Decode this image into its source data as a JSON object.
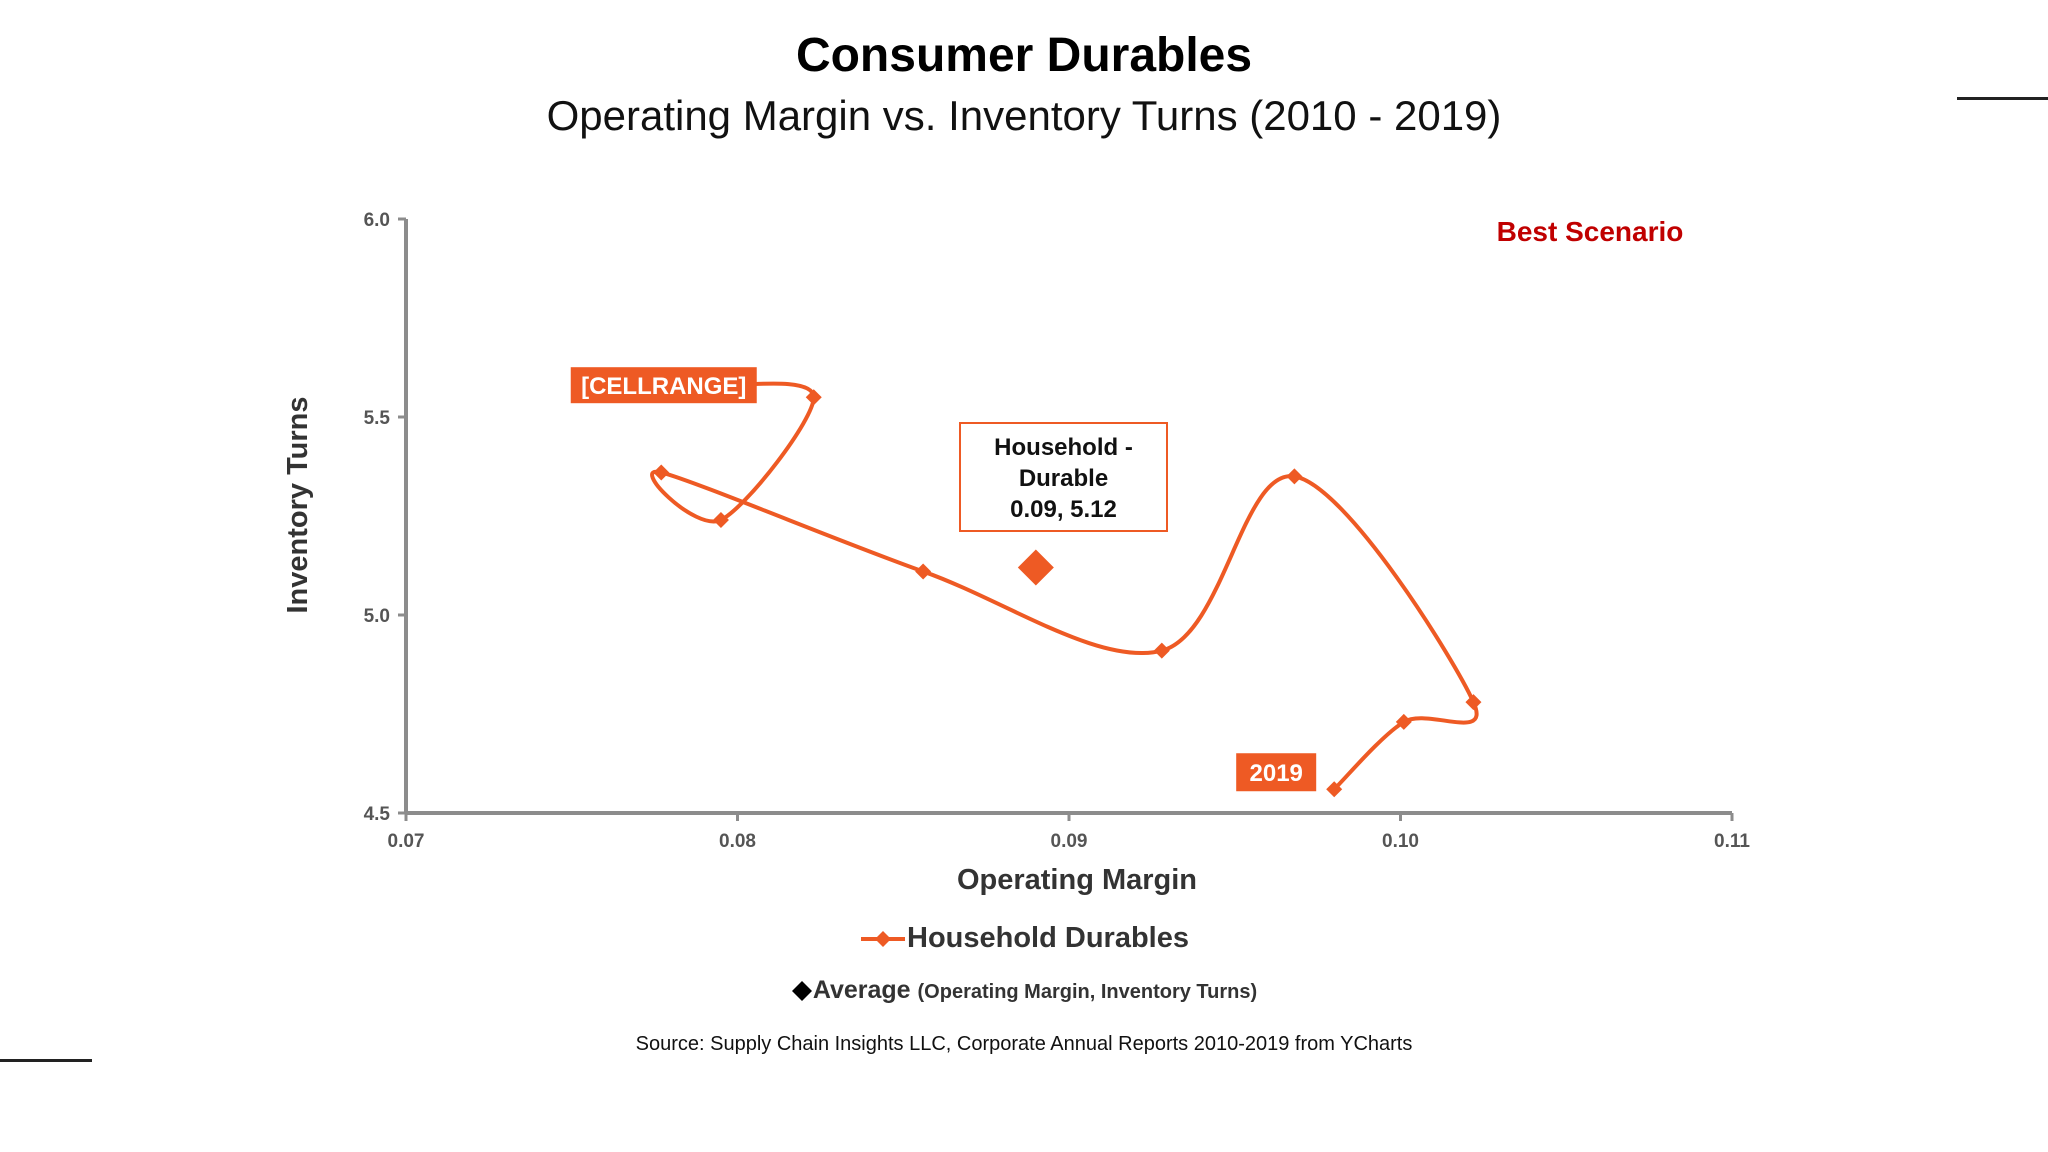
{
  "title": "Consumer Durables",
  "subtitle": "Operating Margin vs. Inventory Turns (2010 - 2019)",
  "annotation_best": "Best Scenario",
  "source": "Source:  Supply Chain Insights LLC, Corporate Annual Reports 2010-2019 from YCharts",
  "legend": {
    "series_label": "Household Durables",
    "average_label": "Average",
    "average_note": "(Operating Margin, Inventory Turns)"
  },
  "colors": {
    "series": "#ee5a24",
    "axis": "#8c8c8c",
    "best": "#c00000",
    "text": "#333333"
  },
  "chart_data": {
    "type": "line",
    "xlabel": "Operating Margin",
    "ylabel": "Inventory Turns",
    "xlim": [
      0.07,
      0.11
    ],
    "ylim": [
      4.5,
      6.0
    ],
    "xticks": [
      "0.07",
      "0.08",
      "0.09",
      "0.10",
      "0.11"
    ],
    "yticks": [
      "4.5",
      "5.0",
      "5.5",
      "6.0"
    ],
    "xtick_values": [
      0.07,
      0.08,
      0.09,
      0.1,
      0.11
    ],
    "ytick_values": [
      4.5,
      5.0,
      5.5,
      6.0
    ],
    "grid": false,
    "series": [
      {
        "name": "Household Durables",
        "x": [
          0.0823,
          0.0795,
          0.0777,
          0.0856,
          0.0928,
          0.0968,
          0.1022,
          0.1001,
          0.098
        ],
        "y": [
          5.55,
          5.24,
          5.36,
          5.11,
          4.91,
          5.35,
          4.78,
          4.73,
          4.56
        ]
      }
    ],
    "start_label": {
      "text": "[CELLRANGE]"
    },
    "end_label": {
      "text": "2019"
    },
    "average": {
      "x": 0.089,
      "y": 5.12,
      "label_line1": "Household -",
      "label_line2": "Durable",
      "label_line3": "0.09, 5.12"
    }
  }
}
